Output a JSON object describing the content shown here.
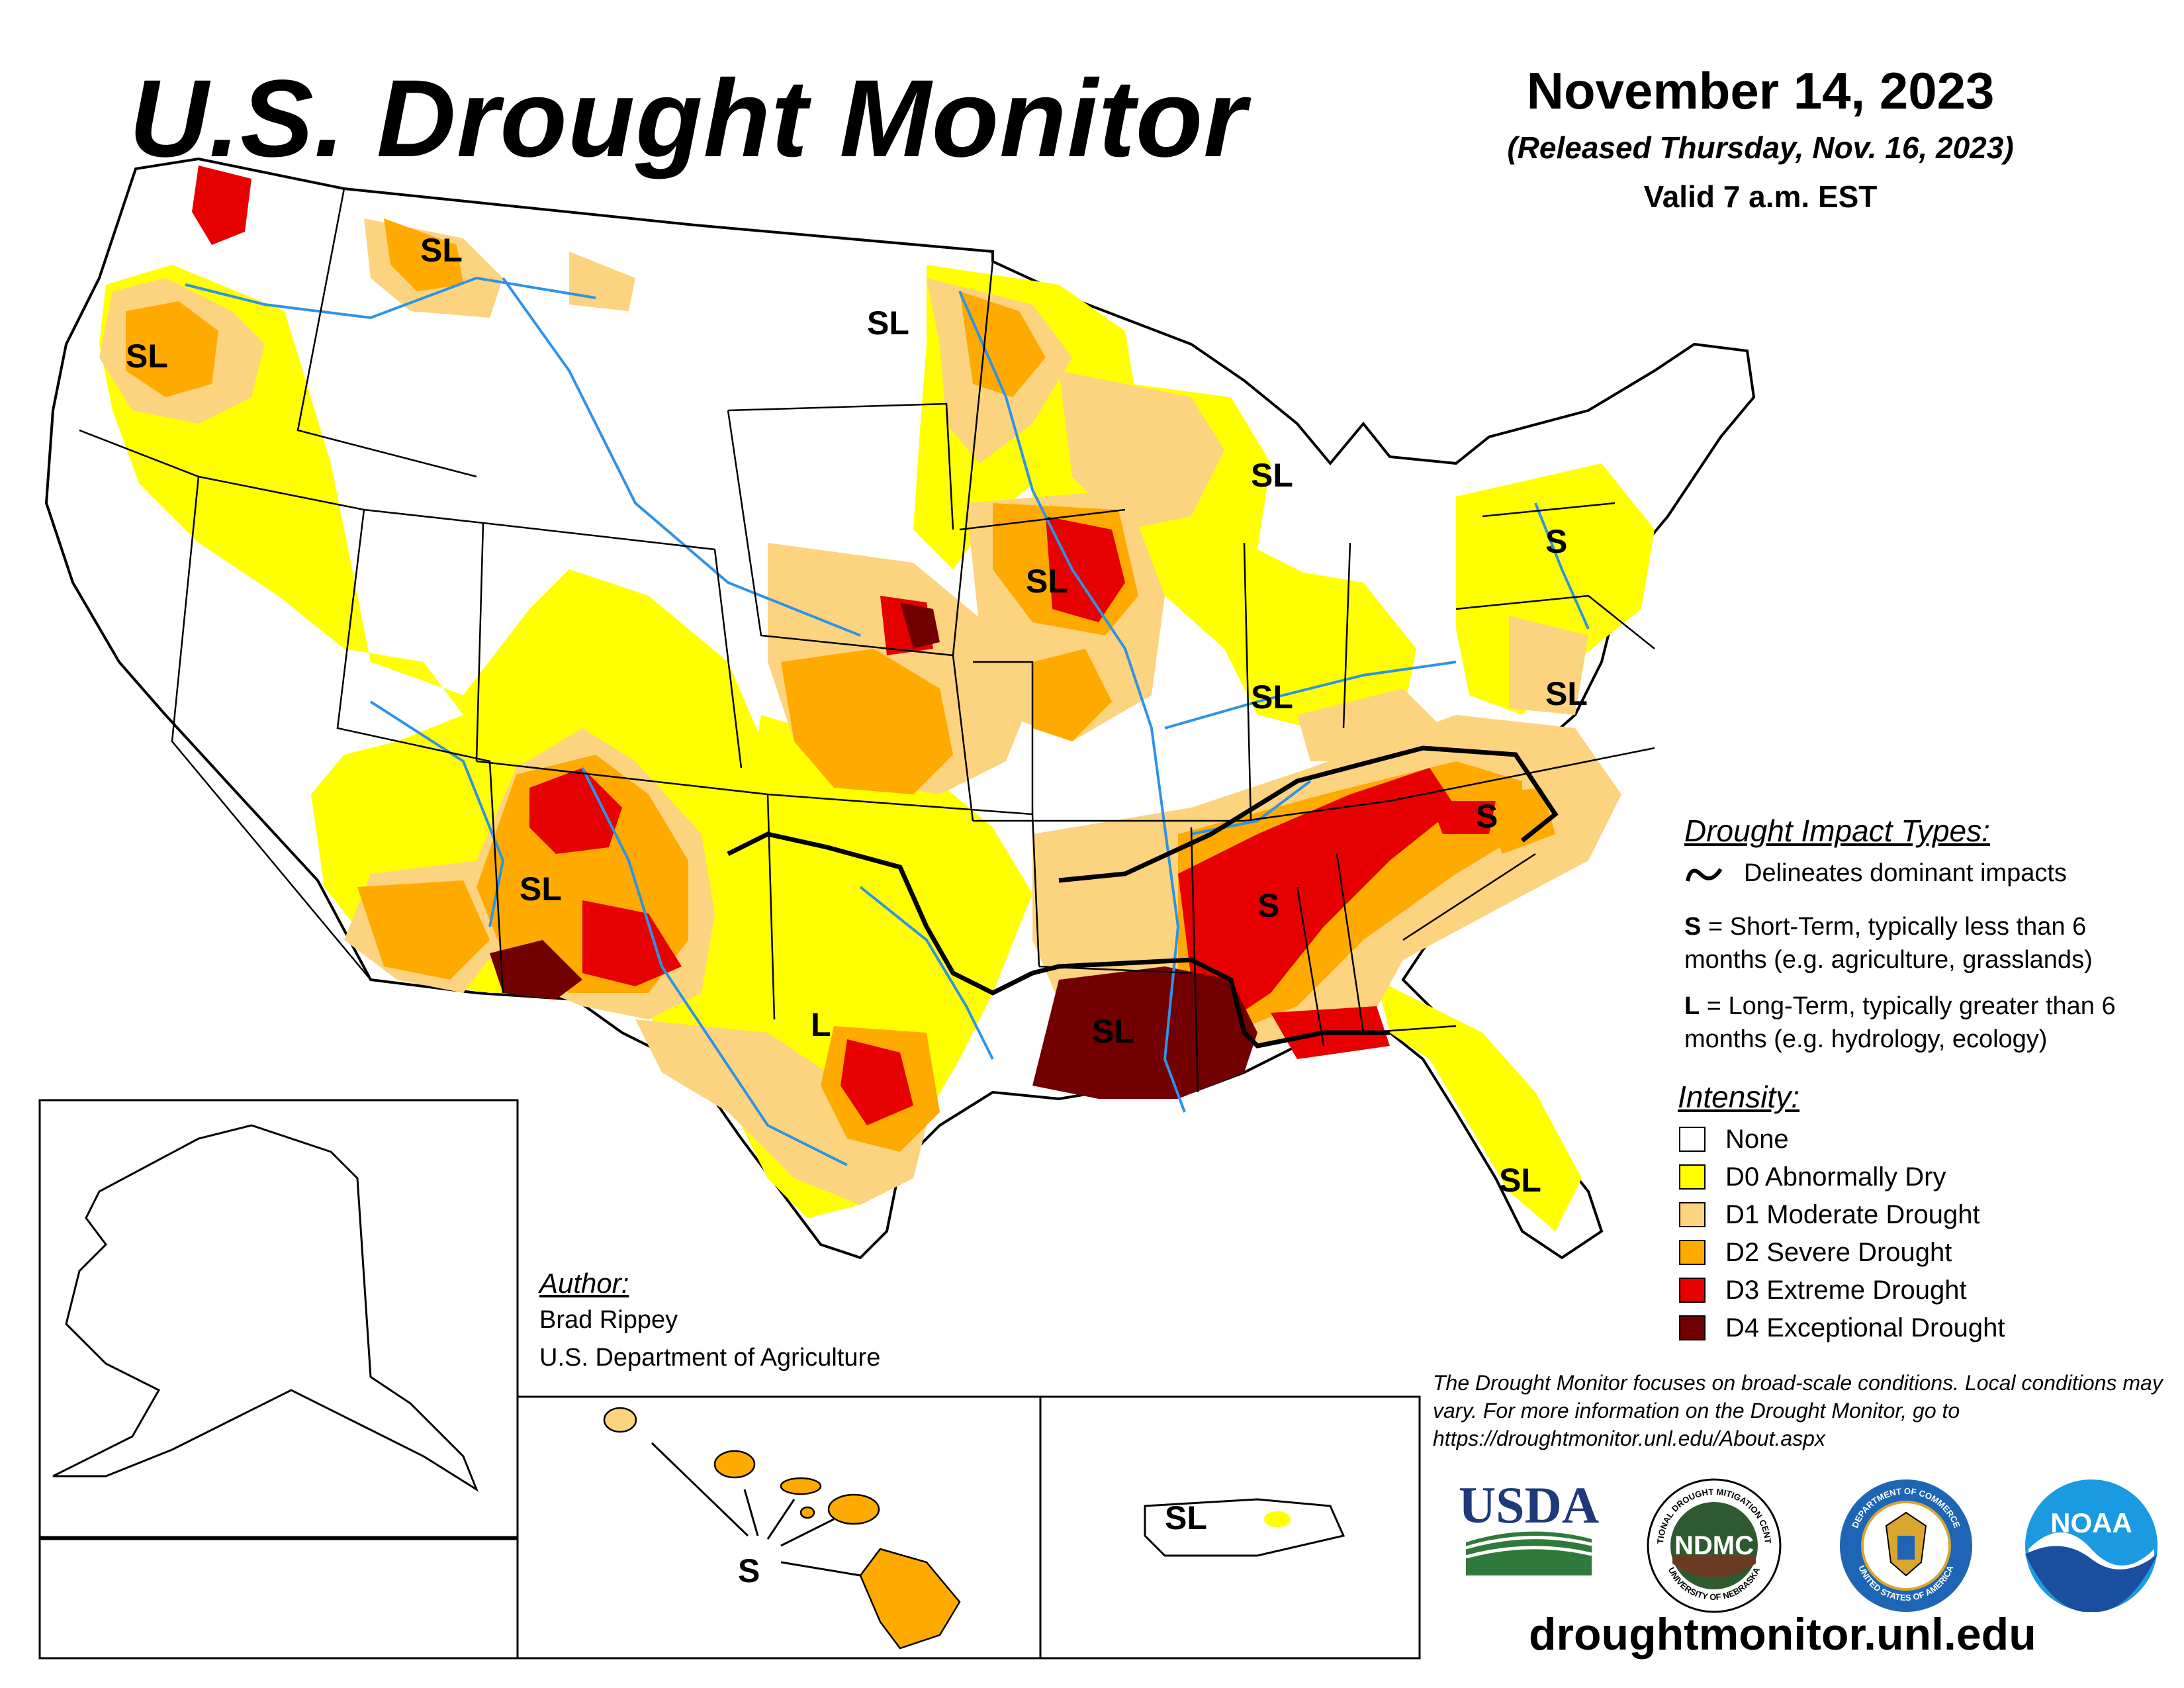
{
  "header": {
    "title": "U.S. Drought Monitor",
    "date": "November 14, 2023",
    "released": "(Released Thursday, Nov. 16, 2023)",
    "valid": "Valid 7 a.m. EST"
  },
  "colors": {
    "none": "#ffffff",
    "d0": "#ffff00",
    "d1": "#fcd37f",
    "d2": "#ffaa00",
    "d3": "#e60000",
    "d4": "#730000",
    "water": "#2e93e6",
    "border": "#000000"
  },
  "impact_types": {
    "title": "Drought Impact Types:",
    "line_label": "Delineates dominant impacts",
    "short_key": "S",
    "short_text": " = Short-Term, typically less than 6 months (e.g. agriculture, grasslands)",
    "long_key": "L",
    "long_text": " = Long-Term, typically greater than 6 months (e.g. hydrology, ecology)"
  },
  "intensity": {
    "title": "Intensity:",
    "items": [
      {
        "label": "None",
        "color": "#ffffff"
      },
      {
        "label": "D0 Abnormally Dry",
        "color": "#ffff00"
      },
      {
        "label": "D1 Moderate Drought",
        "color": "#fcd37f"
      },
      {
        "label": "D2 Severe Drought",
        "color": "#ffaa00"
      },
      {
        "label": "D3 Extreme Drought",
        "color": "#e60000"
      },
      {
        "label": "D4 Exceptional Drought",
        "color": "#730000"
      }
    ]
  },
  "author": {
    "title": "Author:",
    "name": "Brad Rippey",
    "org": "U.S. Department of Agriculture"
  },
  "disclaimer": "The Drought Monitor focuses on broad-scale conditions. Local conditions may vary. For more information on the Drought Monitor, go to https://droughtmonitor.unl.edu/About.aspx",
  "url": "droughtmonitor.unl.edu",
  "logos": {
    "usda": "USDA",
    "ndmc": "NDMC",
    "ndmc_ring_top": "NATIONAL DROUGHT MITIGATION CENTER",
    "ndmc_ring_bottom": "UNIVERSITY OF NEBRASKA",
    "commerce_ring_top": "DEPARTMENT OF COMMERCE",
    "commerce_ring_bottom": "UNITED STATES OF AMERICA",
    "noaa": "NOAA"
  },
  "map_labels": [
    {
      "id": "wa",
      "text": "SL"
    },
    {
      "id": "id-mt",
      "text": "SL"
    },
    {
      "id": "nd",
      "text": "SL"
    },
    {
      "id": "mi",
      "text": "SL"
    },
    {
      "id": "ia",
      "text": "SL"
    },
    {
      "id": "ny-pa",
      "text": "S"
    },
    {
      "id": "in",
      "text": "SL"
    },
    {
      "id": "va",
      "text": "SL"
    },
    {
      "id": "nc",
      "text": "S"
    },
    {
      "id": "al",
      "text": "S"
    },
    {
      "id": "nm",
      "text": "SL"
    },
    {
      "id": "la",
      "text": "SL"
    },
    {
      "id": "tx",
      "text": "L"
    },
    {
      "id": "fl",
      "text": "SL"
    },
    {
      "id": "hi",
      "text": "S"
    },
    {
      "id": "pr",
      "text": "SL"
    }
  ]
}
